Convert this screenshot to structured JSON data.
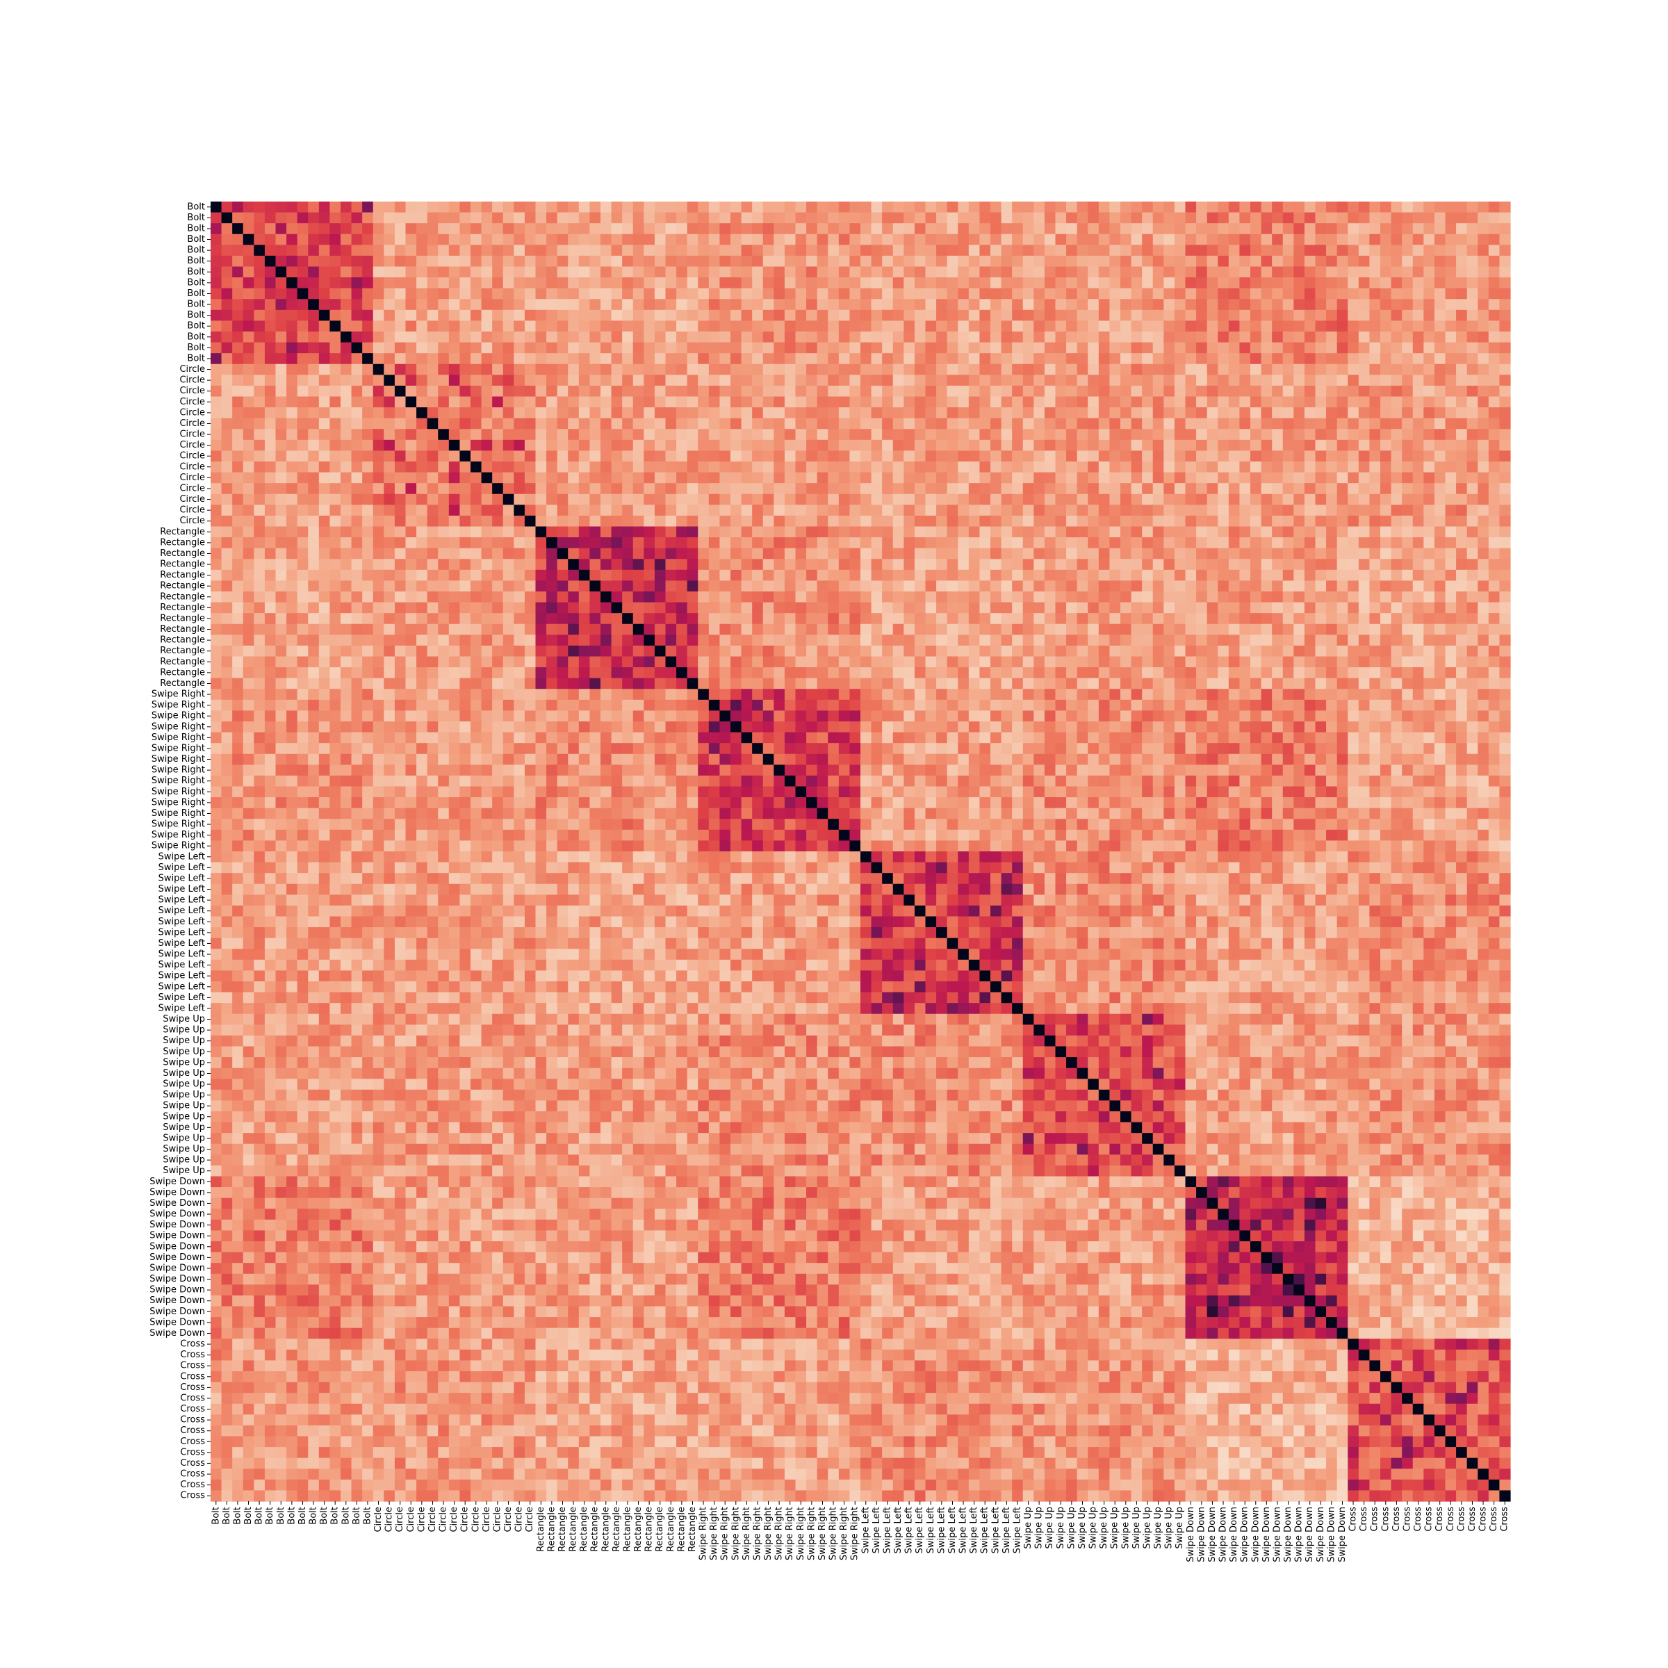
{
  "chart_data": {
    "type": "heatmap",
    "title": "",
    "xlabel": "",
    "ylabel": "",
    "colorbar": false,
    "colormap": "rocket (dark = high similarity, light = low similarity)",
    "value_range": [
      0,
      1
    ],
    "diagonal_value": 1.0,
    "classes": [
      {
        "label": "Bolt",
        "count": 15
      },
      {
        "label": "Circle",
        "count": 15
      },
      {
        "label": "Rectangle",
        "count": 15
      },
      {
        "label": "Swipe Right",
        "count": 15
      },
      {
        "label": "Swipe Left",
        "count": 15
      },
      {
        "label": "Swipe Up",
        "count": 15
      },
      {
        "label": "Swipe Down",
        "count": 15
      },
      {
        "label": "Cross",
        "count": 15
      }
    ],
    "block_values": {
      "Bolt": {
        "Bolt": 0.55,
        "Circle": 0.3,
        "Rectangle": 0.28,
        "Swipe Right": 0.33,
        "Swipe Left": 0.3,
        "Swipe Up": 0.3,
        "Swipe Down": 0.4,
        "Cross": 0.32
      },
      "Circle": {
        "Bolt": 0.3,
        "Circle": 0.4,
        "Rectangle": 0.3,
        "Swipe Right": 0.3,
        "Swipe Left": 0.3,
        "Swipe Up": 0.31,
        "Swipe Down": 0.3,
        "Cross": 0.32
      },
      "Rectangle": {
        "Bolt": 0.28,
        "Circle": 0.3,
        "Rectangle": 0.62,
        "Swipe Right": 0.35,
        "Swipe Left": 0.28,
        "Swipe Up": 0.3,
        "Swipe Down": 0.3,
        "Cross": 0.28
      },
      "Swipe Right": {
        "Bolt": 0.33,
        "Circle": 0.3,
        "Rectangle": 0.35,
        "Swipe Right": 0.58,
        "Swipe Left": 0.3,
        "Swipe Up": 0.35,
        "Swipe Down": 0.4,
        "Cross": 0.28
      },
      "Swipe Left": {
        "Bolt": 0.3,
        "Circle": 0.3,
        "Rectangle": 0.28,
        "Swipe Right": 0.3,
        "Swipe Left": 0.58,
        "Swipe Up": 0.35,
        "Swipe Down": 0.3,
        "Cross": 0.35
      },
      "Swipe Up": {
        "Bolt": 0.3,
        "Circle": 0.31,
        "Rectangle": 0.3,
        "Swipe Right": 0.35,
        "Swipe Left": 0.35,
        "Swipe Up": 0.55,
        "Swipe Down": 0.3,
        "Cross": 0.33
      },
      "Swipe Down": {
        "Bolt": 0.4,
        "Circle": 0.3,
        "Rectangle": 0.3,
        "Swipe Right": 0.4,
        "Swipe Left": 0.3,
        "Swipe Up": 0.3,
        "Swipe Down": 0.65,
        "Cross": 0.22
      },
      "Cross": {
        "Bolt": 0.32,
        "Circle": 0.32,
        "Rectangle": 0.28,
        "Swipe Right": 0.28,
        "Swipe Left": 0.35,
        "Swipe Up": 0.33,
        "Swipe Down": 0.22,
        "Cross": 0.52
      }
    },
    "noise_amplitude": 0.16
  }
}
